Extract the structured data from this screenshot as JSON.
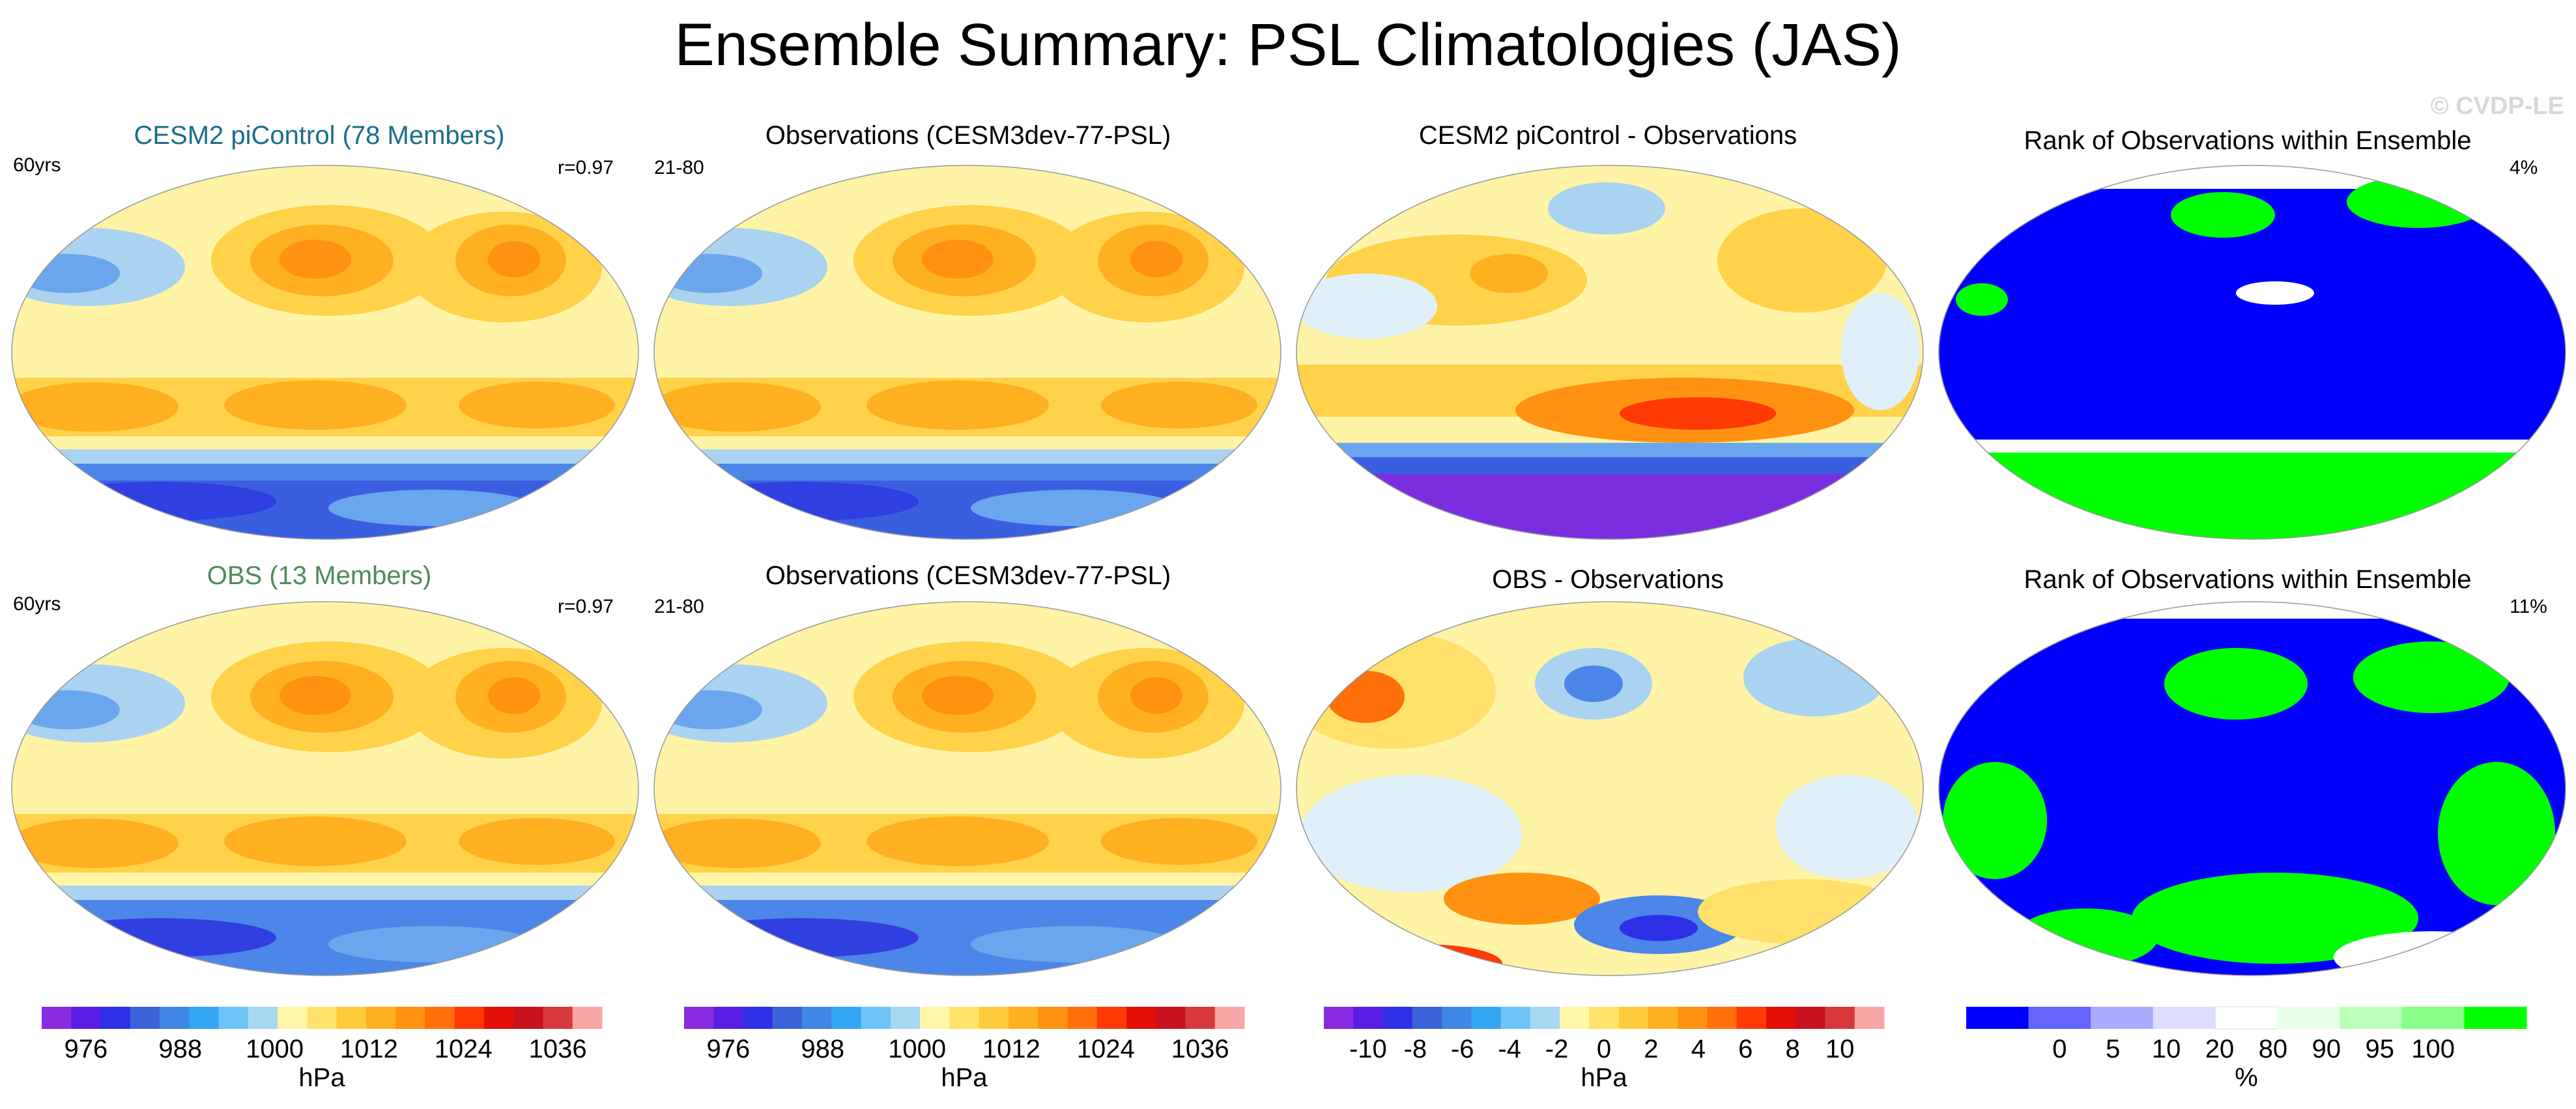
{
  "title": "Ensemble Summary: PSL Climatologies (JAS)",
  "watermark": "© CVDP-LE",
  "rows": [
    {
      "panels": [
        {
          "title": "CESM2 piControl (78 Members)",
          "title_color": "#1b6d8a",
          "left_note": "60yrs",
          "right_note": "r=0.97",
          "kind": "clim"
        },
        {
          "title": "Observations (CESM3dev-77-PSL)",
          "title_color": "#000000",
          "left_note": "21-80",
          "right_note": "",
          "kind": "clim"
        },
        {
          "title": "CESM2 piControl - Observations",
          "title_color": "#000000",
          "left_note": "",
          "right_note": "",
          "kind": "diff_a"
        },
        {
          "title": "Rank of Observations within Ensemble",
          "title_color": "#000000",
          "left_note": "",
          "right_note": "4%",
          "kind": "rank_a"
        }
      ]
    },
    {
      "panels": [
        {
          "title": "OBS (13 Members)",
          "title_color": "#4f8a5a",
          "left_note": "60yrs",
          "right_note": "r=0.97",
          "kind": "clim"
        },
        {
          "title": "Observations (CESM3dev-77-PSL)",
          "title_color": "#000000",
          "left_note": "21-80",
          "right_note": "",
          "kind": "clim"
        },
        {
          "title": "OBS - Observations",
          "title_color": "#000000",
          "left_note": "",
          "right_note": "",
          "kind": "diff_b"
        },
        {
          "title": "Rank of Observations within Ensemble",
          "title_color": "#000000",
          "left_note": "",
          "right_note": "11%",
          "kind": "rank_b"
        }
      ]
    }
  ],
  "colorbars": [
    {
      "unit": "hPa",
      "ticks": [
        "976",
        "988",
        "1000",
        "1012",
        "1024",
        "1036"
      ],
      "colors": [
        "#8a2be2",
        "#5a1fe6",
        "#2f2fe8",
        "#3b63d9",
        "#3f86e6",
        "#33a6f2",
        "#6cc3f5",
        "#a7d8f2",
        "#fff6a8",
        "#ffe26a",
        "#ffcb3a",
        "#ffb020",
        "#ff9210",
        "#ff6f0a",
        "#ff3a05",
        "#e6100a",
        "#c8121e",
        "#d8383c",
        "#f7a6a6"
      ]
    },
    {
      "unit": "hPa",
      "ticks": [
        "976",
        "988",
        "1000",
        "1012",
        "1024",
        "1036"
      ],
      "colors": [
        "#8a2be2",
        "#5a1fe6",
        "#2f2fe8",
        "#3b63d9",
        "#3f86e6",
        "#33a6f2",
        "#6cc3f5",
        "#a7d8f2",
        "#fff6a8",
        "#ffe26a",
        "#ffcb3a",
        "#ffb020",
        "#ff9210",
        "#ff6f0a",
        "#ff3a05",
        "#e6100a",
        "#c8121e",
        "#d8383c",
        "#f7a6a6"
      ]
    },
    {
      "unit": "hPa",
      "ticks": [
        "-10",
        "-8",
        "-6",
        "-4",
        "-2",
        "0",
        "2",
        "4",
        "6",
        "8",
        "10"
      ],
      "colors": [
        "#8a2be2",
        "#5a1fe6",
        "#2f2fe8",
        "#3b63d9",
        "#3f86e6",
        "#33a6f2",
        "#6cc3f5",
        "#a7d8f2",
        "#fff6a8",
        "#ffe26a",
        "#ffcb3a",
        "#ffb020",
        "#ff9210",
        "#ff6f0a",
        "#ff3a05",
        "#e6100a",
        "#c8121e",
        "#d8383c",
        "#f7a6a6"
      ]
    },
    {
      "unit": "%",
      "ticks": [
        "0",
        "5",
        "10",
        "20",
        "80",
        "90",
        "95",
        "100"
      ],
      "colors": [
        "#0000ff",
        "#6666ff",
        "#aaaaff",
        "#ddddff",
        "#ffffff",
        "#e6ffe6",
        "#bbffbb",
        "#88ff88",
        "#00ff00"
      ]
    }
  ]
}
